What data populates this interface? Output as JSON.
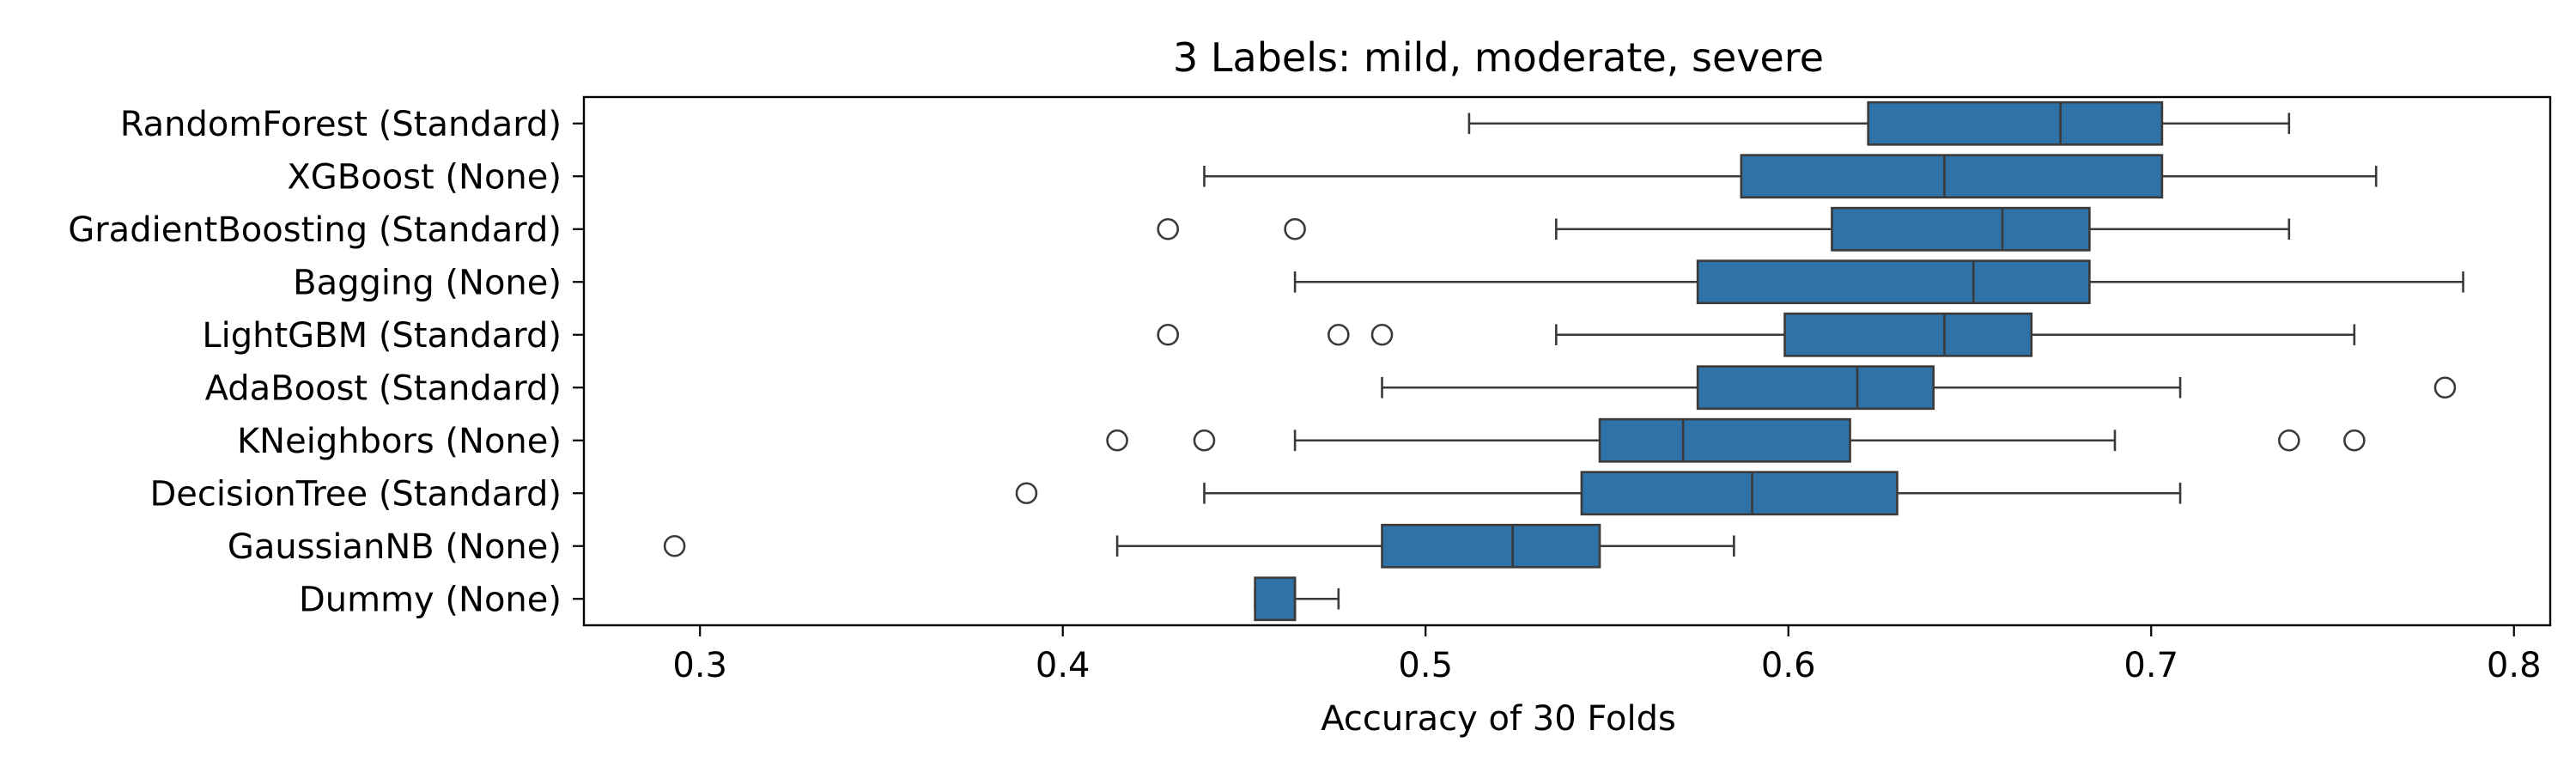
{
  "chart_data": {
    "type": "box",
    "orientation": "horizontal",
    "title": "3 Labels: mild, moderate, severe",
    "xlabel": "Accuracy of 30 Folds",
    "ylabel": "",
    "xlim": [
      0.268,
      0.81
    ],
    "xticks": [
      0.3,
      0.4,
      0.5,
      0.6,
      0.7,
      0.8
    ],
    "xtick_labels": [
      "0.3",
      "0.4",
      "0.5",
      "0.6",
      "0.7",
      "0.8"
    ],
    "grid": false,
    "legend": "none",
    "box_color": "#2f72a8",
    "edge_color": "#3a3a3a",
    "categories": [
      "RandomForest (Standard)",
      "XGBoost (None)",
      "GradientBoosting (Standard)",
      "Bagging (None)",
      "LightGBM (Standard)",
      "AdaBoost (Standard)",
      "KNeighbors (None)",
      "DecisionTree (Standard)",
      "GaussianNB (None)",
      "Dummy (None)"
    ],
    "boxes": [
      {
        "whisker_low": 0.512,
        "q1": 0.622,
        "median": 0.675,
        "q3": 0.703,
        "whisker_high": 0.738,
        "outliers": []
      },
      {
        "whisker_low": 0.439,
        "q1": 0.587,
        "median": 0.643,
        "q3": 0.703,
        "whisker_high": 0.762,
        "outliers": []
      },
      {
        "whisker_low": 0.536,
        "q1": 0.612,
        "median": 0.659,
        "q3": 0.683,
        "whisker_high": 0.738,
        "outliers": [
          0.429,
          0.464
        ]
      },
      {
        "whisker_low": 0.464,
        "q1": 0.575,
        "median": 0.651,
        "q3": 0.683,
        "whisker_high": 0.786,
        "outliers": []
      },
      {
        "whisker_low": 0.536,
        "q1": 0.599,
        "median": 0.643,
        "q3": 0.667,
        "whisker_high": 0.756,
        "outliers": [
          0.429,
          0.476,
          0.488
        ]
      },
      {
        "whisker_low": 0.488,
        "q1": 0.575,
        "median": 0.619,
        "q3": 0.64,
        "whisker_high": 0.708,
        "outliers": [
          0.781
        ]
      },
      {
        "whisker_low": 0.464,
        "q1": 0.548,
        "median": 0.571,
        "q3": 0.617,
        "whisker_high": 0.69,
        "outliers": [
          0.415,
          0.439,
          0.738,
          0.756
        ]
      },
      {
        "whisker_low": 0.439,
        "q1": 0.543,
        "median": 0.59,
        "q3": 0.63,
        "whisker_high": 0.708,
        "outliers": [
          0.39
        ]
      },
      {
        "whisker_low": 0.415,
        "q1": 0.488,
        "median": 0.524,
        "q3": 0.548,
        "whisker_high": 0.585,
        "outliers": [
          0.293
        ]
      },
      {
        "whisker_low": 0.453,
        "q1": 0.453,
        "median": 0.464,
        "q3": 0.464,
        "whisker_high": 0.476,
        "outliers": []
      }
    ]
  }
}
